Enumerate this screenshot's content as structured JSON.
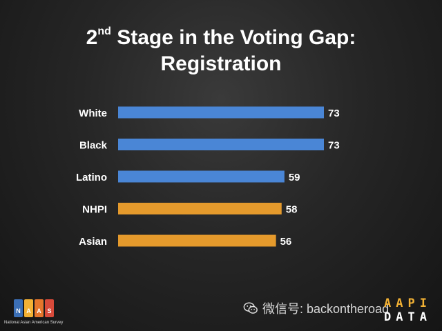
{
  "title": {
    "line1_prefix": "2",
    "line1_sup": "nd",
    "line1_rest": " Stage in the Voting Gap:",
    "line2": "Registration"
  },
  "chart_data": {
    "type": "bar",
    "orientation": "horizontal",
    "title": "2nd Stage in the Voting Gap: Registration",
    "categories": [
      "White",
      "Black",
      "Latino",
      "NHPI",
      "Asian"
    ],
    "values": [
      73,
      73,
      59,
      58,
      56
    ],
    "colors": [
      "#4a86d6",
      "#4a86d6",
      "#4a86d6",
      "#e59a2c",
      "#e59a2c"
    ],
    "xlabel": "",
    "ylabel": "",
    "xlim": [
      0,
      73
    ],
    "grid": false,
    "legend": "none",
    "data_labels": true
  },
  "colors": {
    "bar_blue": "#4a86d6",
    "bar_orange": "#e59a2c",
    "label_text": "#ffffff"
  },
  "footer": {
    "naas_letters": [
      "N",
      "A",
      "A",
      "S"
    ],
    "naas_colors": [
      "#3b6fb6",
      "#f2b134",
      "#e5762c",
      "#d84a3a"
    ],
    "naas_caption": "National Asian American Survey",
    "watermark_text": "微信号: backontheroad",
    "aapi_row1": "AAPI",
    "aapi_row2": "DATA"
  }
}
